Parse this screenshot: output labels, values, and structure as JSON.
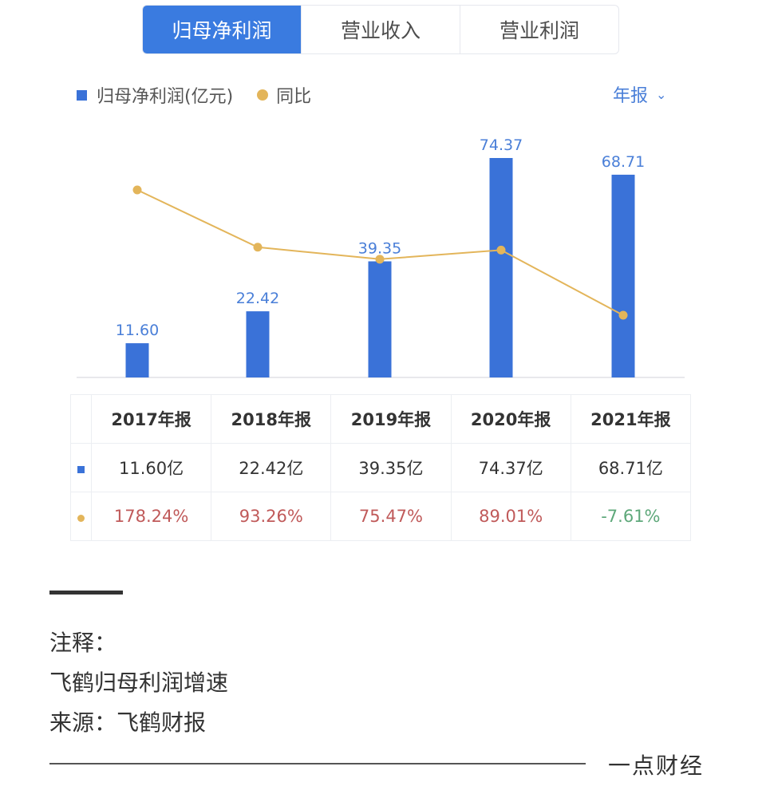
{
  "tabs": [
    {
      "label": "归母净利润",
      "active": true
    },
    {
      "label": "营业收入",
      "active": false
    },
    {
      "label": "营业利润",
      "active": false
    }
  ],
  "legend": {
    "bar_label": "归母净利润(亿元)",
    "line_label": "同比"
  },
  "period": {
    "label": "年报"
  },
  "colors": {
    "accent": "#3a7be0",
    "bar": "#3a72d8",
    "line": "#e3b55a",
    "positive": "#c05a5a",
    "negative": "#5ea87a"
  },
  "chart_data": {
    "type": "bar",
    "categories": [
      "2017年报",
      "2018年报",
      "2019年报",
      "2020年报",
      "2021年报"
    ],
    "series": [
      {
        "name": "归母净利润(亿元)",
        "type": "bar",
        "values": [
          11.6,
          22.42,
          39.35,
          74.37,
          68.71
        ],
        "labels": [
          "11.60",
          "22.42",
          "39.35",
          "74.37",
          "68.71"
        ]
      },
      {
        "name": "同比",
        "type": "line",
        "values": [
          178.24,
          93.26,
          75.47,
          89.01,
          -7.61
        ]
      }
    ]
  },
  "table": {
    "headers": [
      "2017年报",
      "2018年报",
      "2019年报",
      "2020年报",
      "2021年报"
    ],
    "values": [
      "11.60亿",
      "22.42亿",
      "39.35亿",
      "74.37亿",
      "68.71亿"
    ],
    "yoy": [
      "178.24%",
      "93.26%",
      "75.47%",
      "89.01%",
      "-7.61%"
    ]
  },
  "notes": {
    "title": "注释：",
    "line1": "飞鹤归母利润增速",
    "line2": "来源：飞鹤财报"
  },
  "brand": "一点财经"
}
